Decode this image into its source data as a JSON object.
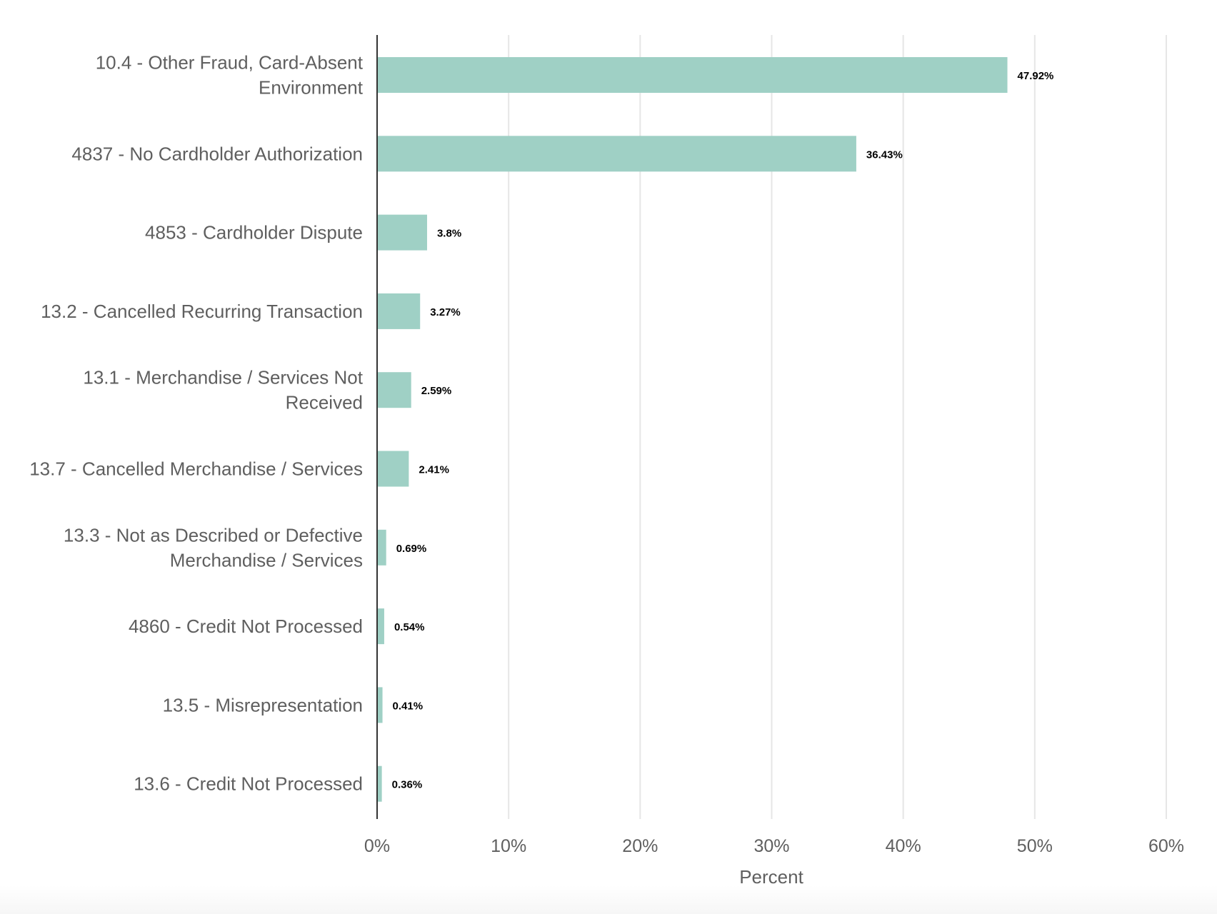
{
  "chart_data": {
    "type": "bar",
    "orientation": "horizontal",
    "categories": [
      [
        "10.4 - Other Fraud, Card-Absent",
        "Environment"
      ],
      [
        "4837 - No Cardholder Authorization"
      ],
      [
        "4853 - Cardholder Dispute"
      ],
      [
        "13.2 - Cancelled Recurring Transaction"
      ],
      [
        "13.1 - Merchandise / Services Not",
        "Received"
      ],
      [
        "13.7 - Cancelled Merchandise / Services"
      ],
      [
        "13.3 - Not as Described or Defective",
        "Merchandise / Services"
      ],
      [
        "4860 - Credit Not Processed"
      ],
      [
        "13.5 - Misrepresentation"
      ],
      [
        "13.6 - Credit Not Processed"
      ]
    ],
    "values": [
      47.92,
      36.43,
      3.8,
      3.27,
      2.59,
      2.41,
      0.69,
      0.54,
      0.41,
      0.36
    ],
    "value_labels": [
      "47.92%",
      "36.43%",
      "3.8%",
      "3.27%",
      "2.59%",
      "2.41%",
      "0.69%",
      "0.54%",
      "0.41%",
      "0.36%"
    ],
    "xlabel": "Percent",
    "ylabel": "",
    "xlim": [
      0,
      60
    ],
    "xticks": [
      0,
      10,
      20,
      30,
      40,
      50,
      60
    ],
    "xtick_labels": [
      "0%",
      "10%",
      "20%",
      "30%",
      "40%",
      "50%",
      "60%"
    ],
    "grid": "vertical",
    "bar_color": "#9fd0c5"
  }
}
